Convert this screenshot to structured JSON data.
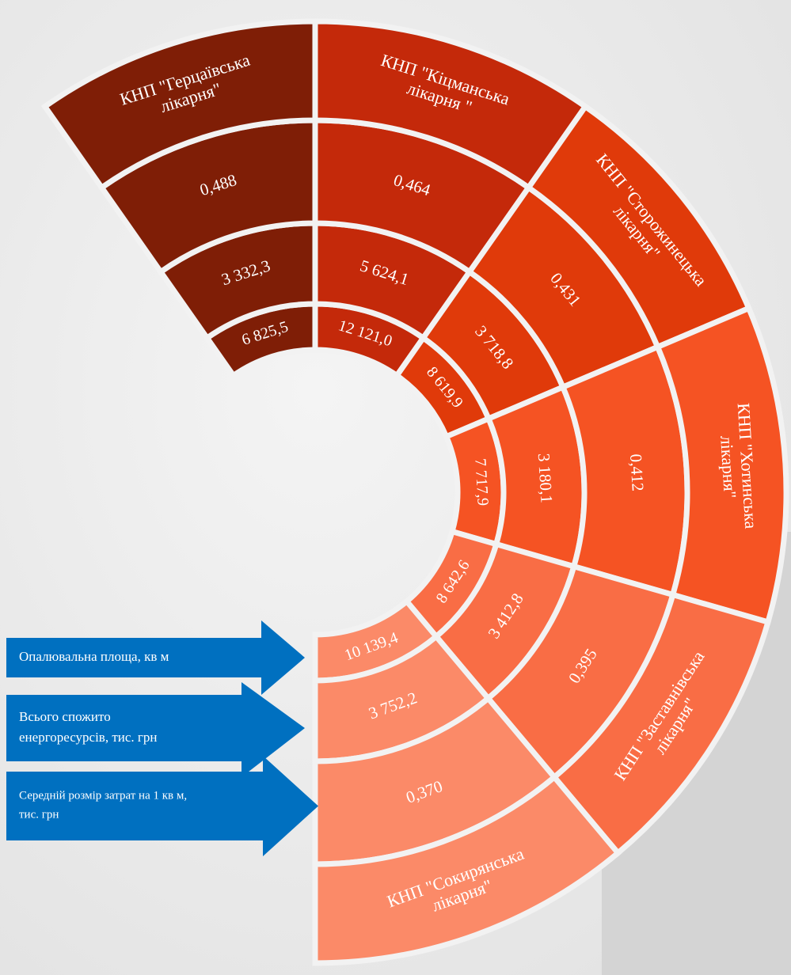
{
  "hospitals": [
    {
      "name": [
        "КНП \"Герцаївська",
        "лікарня\""
      ],
      "area": "6 825,5",
      "total": "3 332,3",
      "avg": "0,488"
    },
    {
      "name": [
        "КНП \"Кіцманська",
        "лікарня \""
      ],
      "area": "12 121,0",
      "total": "5 624,1",
      "avg": "0,464"
    },
    {
      "name": [
        "КНП \"Сторожинецька",
        "лікарня\""
      ],
      "area": "8 619,9",
      "total": "3 718,8",
      "avg": "0,431"
    },
    {
      "name": [
        "КНП \"Хотинська",
        "лікарня\""
      ],
      "area": "7 717,9",
      "total": "3 180,1",
      "avg": "0,412"
    },
    {
      "name": [
        "КНП \"Заставнівська",
        "лікарня\""
      ],
      "area": "8 642,6",
      "total": "3 412,8",
      "avg": "0,395"
    },
    {
      "name": [
        "КНП \"Сокирянська",
        "лікарня\""
      ],
      "area": "10 139,4",
      "total": "3 752,2",
      "avg": "0,370"
    }
  ],
  "legend": [
    {
      "lines": [
        "Опалювальна площа, кв м"
      ]
    },
    {
      "lines": [
        "Всього спожито",
        "енергоресурсів, тис. грн"
      ]
    },
    {
      "lines": [
        "Середній розмір затрат на 1 кв м,",
        "тис. грн"
      ]
    }
  ]
}
